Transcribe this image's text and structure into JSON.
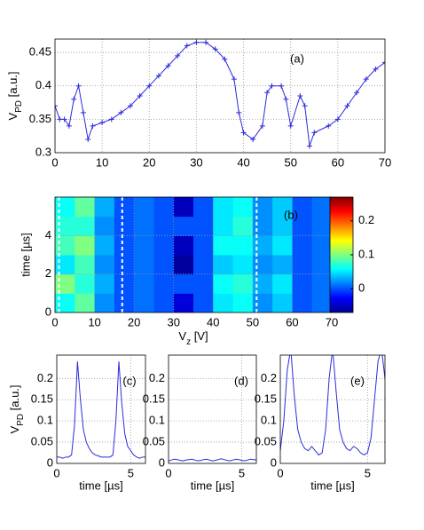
{
  "chart_data": [
    {
      "type": "line",
      "annotation": "(a)",
      "ylabel": [
        "V",
        "PD",
        " [a.u.]"
      ],
      "color": "#2b2bdc",
      "marker": "+",
      "grid": true,
      "x": [
        0,
        1,
        2,
        3,
        4,
        5,
        6,
        7,
        8,
        10,
        12,
        14,
        16,
        18,
        20,
        22,
        24,
        26,
        28,
        30,
        32,
        34,
        36,
        38,
        39,
        40,
        42,
        44,
        45,
        46,
        48,
        49,
        50,
        52,
        53,
        54,
        55,
        58,
        60,
        62,
        64,
        66,
        68,
        70
      ],
      "values": [
        0.37,
        0.35,
        0.35,
        0.34,
        0.38,
        0.4,
        0.36,
        0.32,
        0.34,
        0.345,
        0.35,
        0.36,
        0.37,
        0.385,
        0.4,
        0.415,
        0.43,
        0.445,
        0.46,
        0.465,
        0.465,
        0.455,
        0.44,
        0.41,
        0.36,
        0.33,
        0.32,
        0.34,
        0.39,
        0.4,
        0.4,
        0.38,
        0.34,
        0.385,
        0.37,
        0.31,
        0.33,
        0.34,
        0.35,
        0.37,
        0.39,
        0.41,
        0.425,
        0.435
      ],
      "xlim": [
        0,
        70
      ],
      "xticks": [
        0,
        10,
        20,
        30,
        40,
        50,
        60,
        70
      ],
      "ylim": [
        0.3,
        0.47
      ],
      "yticks": [
        0.3,
        0.35,
        0.4,
        0.45
      ]
    },
    {
      "type": "heatmap",
      "annotation": "(b)",
      "xlabel": [
        "V",
        "z",
        " [V]"
      ],
      "ylabel": "time [µs]",
      "grid": true,
      "x_edges": [
        0,
        5,
        10,
        15,
        20,
        25,
        30,
        35,
        40,
        45,
        50,
        55,
        60,
        65,
        70
      ],
      "y_edges": [
        0,
        1,
        2,
        3,
        4,
        5,
        6
      ],
      "z": [
        [
          0.06,
          0.09,
          0.02,
          0.0,
          0.01,
          0.0,
          -0.04,
          0.0,
          0.05,
          0.06,
          0.02,
          0.04,
          0.0,
          0.01
        ],
        [
          0.1,
          0.07,
          0.03,
          0.0,
          0.01,
          0.0,
          0.0,
          0.0,
          0.06,
          0.07,
          0.03,
          0.05,
          0.0,
          0.01
        ],
        [
          0.05,
          0.08,
          0.02,
          0.0,
          0.01,
          0.0,
          -0.06,
          0.0,
          0.04,
          0.05,
          0.02,
          0.03,
          0.0,
          0.01
        ],
        [
          0.08,
          0.1,
          0.03,
          0.0,
          0.01,
          0.0,
          -0.05,
          0.0,
          0.06,
          0.06,
          0.03,
          0.05,
          0.0,
          0.01
        ],
        [
          0.07,
          0.07,
          0.02,
          0.0,
          0.01,
          0.0,
          0.0,
          0.0,
          0.05,
          0.07,
          0.02,
          0.04,
          0.0,
          0.01
        ],
        [
          0.06,
          0.09,
          0.03,
          0.0,
          0.01,
          0.0,
          -0.05,
          0.0,
          0.05,
          0.06,
          0.02,
          0.04,
          0.0,
          0.01
        ]
      ],
      "clim": [
        -0.07,
        0.27
      ],
      "cticks": [
        0,
        0.1,
        0.2
      ],
      "vlines": [
        1,
        17,
        51
      ],
      "vline_color": "#ffffff",
      "xlim": [
        0,
        70
      ],
      "xticks": [
        0,
        10,
        20,
        30,
        40,
        50,
        60,
        70
      ],
      "ylim": [
        0,
        6
      ],
      "yticks": [
        0,
        2,
        4
      ]
    },
    {
      "type": "line",
      "annotation": "(c)",
      "ylabel": [
        "V",
        "PD",
        " [a.u.]"
      ],
      "xlabel": "time [µs]",
      "color": "#2b2bdc",
      "grid": true,
      "x": [
        0,
        0.2,
        0.4,
        0.6,
        0.8,
        1,
        1.2,
        1.4,
        1.6,
        1.8,
        2,
        2.2,
        2.4,
        2.6,
        2.8,
        3,
        3.2,
        3.4,
        3.6,
        3.8,
        4,
        4.2,
        4.4,
        4.6,
        4.8,
        5,
        5.2,
        5.4,
        5.6,
        5.8,
        6
      ],
      "values": [
        0.015,
        0.015,
        0.012,
        0.015,
        0.015,
        0.02,
        0.09,
        0.24,
        0.15,
        0.08,
        0.05,
        0.035,
        0.025,
        0.02,
        0.018,
        0.015,
        0.015,
        0.015,
        0.015,
        0.02,
        0.1,
        0.24,
        0.14,
        0.07,
        0.04,
        0.03,
        0.02,
        0.015,
        0.012,
        0.015,
        0.015
      ],
      "xlim": [
        0,
        6
      ],
      "xticks": [
        0,
        5
      ],
      "ylim": [
        0,
        0.255
      ],
      "yticks": [
        0,
        0.05,
        0.1,
        0.15,
        0.2
      ]
    },
    {
      "type": "line",
      "annotation": "(d)",
      "xlabel": "time [µs]",
      "color": "#2b2bdc",
      "grid": true,
      "x": [
        0,
        0.2,
        0.4,
        0.6,
        0.8,
        1,
        1.2,
        1.4,
        1.6,
        1.8,
        2,
        2.2,
        2.4,
        2.6,
        2.8,
        3,
        3.2,
        3.4,
        3.6,
        3.8,
        4,
        4.2,
        4.4,
        4.6,
        4.8,
        5,
        5.2,
        5.4,
        5.6,
        5.8,
        6
      ],
      "values": [
        0.006,
        0.008,
        0.01,
        0.009,
        0.007,
        0.006,
        0.008,
        0.009,
        0.01,
        0.008,
        0.006,
        0.007,
        0.009,
        0.01,
        0.008,
        0.006,
        0.007,
        0.009,
        0.011,
        0.009,
        0.007,
        0.006,
        0.008,
        0.01,
        0.009,
        0.007,
        0.006,
        0.008,
        0.01,
        0.009,
        0.008
      ],
      "xlim": [
        0,
        6
      ],
      "xticks": [
        0,
        5
      ],
      "ylim": [
        0,
        0.255
      ],
      "yticks": [
        0,
        0.05,
        0.1,
        0.15,
        0.2
      ]
    },
    {
      "type": "line",
      "annotation": "(e)",
      "xlabel": "time [µs]",
      "color": "#2b2bdc",
      "grid": true,
      "x": [
        0,
        0.2,
        0.4,
        0.6,
        0.8,
        1,
        1.2,
        1.4,
        1.6,
        1.8,
        2,
        2.2,
        2.4,
        2.6,
        2.8,
        3,
        3.2,
        3.4,
        3.6,
        3.8,
        4,
        4.2,
        4.4,
        4.6,
        4.8,
        5,
        5.2,
        5.4,
        5.6,
        5.8,
        6
      ],
      "values": [
        0.03,
        0.1,
        0.22,
        0.27,
        0.16,
        0.08,
        0.05,
        0.035,
        0.03,
        0.04,
        0.03,
        0.02,
        0.025,
        0.08,
        0.2,
        0.27,
        0.17,
        0.08,
        0.05,
        0.035,
        0.03,
        0.04,
        0.035,
        0.025,
        0.02,
        0.025,
        0.06,
        0.15,
        0.24,
        0.27,
        0.2
      ],
      "xlim": [
        0,
        6
      ],
      "xticks": [
        0,
        5
      ],
      "ylim": [
        0,
        0.255
      ],
      "yticks": [
        0,
        0.05,
        0.1,
        0.15,
        0.2
      ]
    }
  ]
}
